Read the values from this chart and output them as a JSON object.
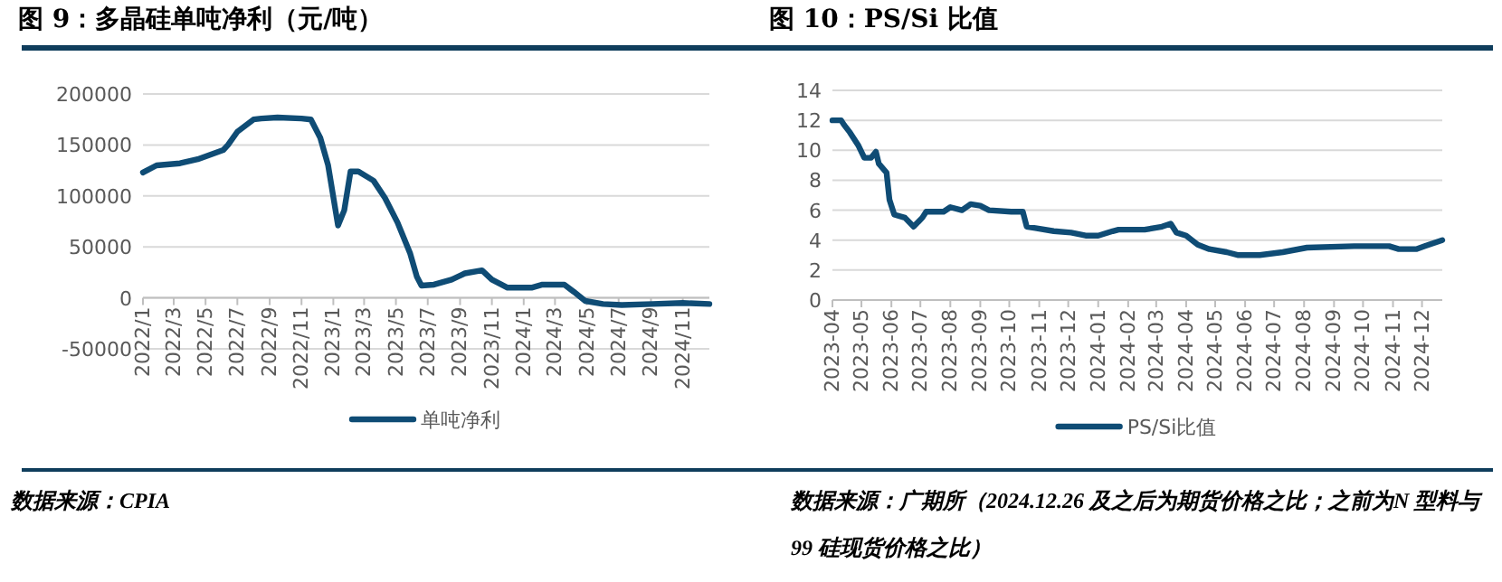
{
  "chart_data": [
    {
      "type": "line",
      "title": "图 9：多晶硅单吨净利（元/吨）",
      "grid": "y",
      "legend": "bottom",
      "x": [
        "2022-01-01",
        "2022-01-27",
        "2022-03-13",
        "2022-04-16",
        "2022-06-04",
        "2022-06-13",
        "2022-07-01",
        "2022-08-01",
        "2022-08-16",
        "2022-09-16",
        "2022-11-01",
        "2022-11-19",
        "2022-12-07",
        "2022-12-22",
        "2023-01-10",
        "2023-01-22",
        "2023-02-03",
        "2023-02-18",
        "2023-03-19",
        "2023-04-10",
        "2023-05-04",
        "2023-05-28",
        "2023-06-10",
        "2023-06-19",
        "2023-07-13",
        "2023-08-16",
        "2023-09-10",
        "2023-10-13",
        "2023-11-01",
        "2023-12-01",
        "2024-01-16",
        "2024-02-06",
        "2024-03-19",
        "2024-04-06",
        "2024-04-28",
        "2024-06-01",
        "2024-07-07",
        "2024-09-04",
        "2024-11-01",
        "2024-12-22"
      ],
      "series": [
        {
          "name": "单吨净利",
          "color": "#0f4c75",
          "values": [
            123000,
            130000,
            132000,
            136000,
            145000,
            150000,
            163000,
            175000,
            176000,
            177000,
            176000,
            175000,
            157000,
            130000,
            71000,
            86000,
            124000,
            124000,
            115000,
            98000,
            74000,
            44000,
            21000,
            12000,
            13000,
            18000,
            24000,
            27000,
            18000,
            10000,
            10000,
            13000,
            13000,
            6000,
            -3000,
            -6000,
            -7000,
            -6000,
            -5000,
            -6000
          ]
        }
      ],
      "xlim": [
        "2022-01-01",
        "2024-12-22"
      ],
      "xticks": [
        {
          "value": "2022-01",
          "label": "2022/1"
        },
        {
          "value": "2022-03",
          "label": "2022/3"
        },
        {
          "value": "2022-05",
          "label": "2022/5"
        },
        {
          "value": "2022-07",
          "label": "2022/7"
        },
        {
          "value": "2022-09",
          "label": "2022/9"
        },
        {
          "value": "2022-11",
          "label": "2022/11"
        },
        {
          "value": "2023-01",
          "label": "2023/1"
        },
        {
          "value": "2023-03",
          "label": "2023/3"
        },
        {
          "value": "2023-05",
          "label": "2023/5"
        },
        {
          "value": "2023-07",
          "label": "2023/7"
        },
        {
          "value": "2023-09",
          "label": "2023/9"
        },
        {
          "value": "2023-11",
          "label": "2023/11"
        },
        {
          "value": "2024-01",
          "label": "2024/1"
        },
        {
          "value": "2024-03",
          "label": "2024/3"
        },
        {
          "value": "2024-05",
          "label": "2024/5"
        },
        {
          "value": "2024-07",
          "label": "2024/7"
        },
        {
          "value": "2024-09",
          "label": "2024/9"
        },
        {
          "value": "2024-11",
          "label": "2024/11"
        }
      ],
      "ylim": [
        -50000,
        200000
      ],
      "yticks": [
        -50000,
        0,
        50000,
        100000,
        150000,
        200000
      ],
      "annotations": [
        "数据来源：CPIA"
      ]
    },
    {
      "type": "line",
      "title": "图 10：PS/Si 比值",
      "grid": "y",
      "legend": "bottom",
      "x": [
        "2023-04-01",
        "2023-04-10",
        "2023-04-13",
        "2023-04-19",
        "2023-04-28",
        "2023-05-04",
        "2023-05-11",
        "2023-05-16",
        "2023-05-19",
        "2023-05-27",
        "2023-05-30",
        "2023-06-04",
        "2023-06-15",
        "2023-06-24",
        "2023-07-03",
        "2023-07-07",
        "2023-07-25",
        "2023-08-01",
        "2023-08-13",
        "2023-08-22",
        "2023-09-01",
        "2023-09-10",
        "2023-10-03",
        "2023-10-15",
        "2023-10-19",
        "2023-10-28",
        "2023-11-16",
        "2023-12-04",
        "2023-12-19",
        "2024-01-01",
        "2024-01-16",
        "2024-01-22",
        "2024-02-18",
        "2024-03-07",
        "2024-03-16",
        "2024-03-22",
        "2024-04-01",
        "2024-04-13",
        "2024-04-25",
        "2024-05-13",
        "2024-05-25",
        "2024-06-16",
        "2024-07-10",
        "2024-08-04",
        "2024-09-22",
        "2024-10-28",
        "2024-11-07",
        "2024-11-25",
        "2024-12-04",
        "2024-12-13",
        "2024-12-22"
      ],
      "series": [
        {
          "name": "PS/Si比值",
          "color": "#0f4c75",
          "values": [
            12.0,
            12.0,
            11.7,
            11.2,
            10.3,
            9.5,
            9.5,
            9.9,
            9.1,
            8.5,
            6.7,
            5.7,
            5.5,
            4.9,
            5.5,
            5.9,
            5.9,
            6.2,
            6.0,
            6.4,
            6.3,
            6.0,
            5.9,
            5.9,
            4.9,
            4.8,
            4.6,
            4.5,
            4.3,
            4.3,
            4.6,
            4.7,
            4.7,
            4.9,
            5.1,
            4.5,
            4.3,
            3.7,
            3.4,
            3.2,
            3.0,
            3.0,
            3.2,
            3.5,
            3.6,
            3.6,
            3.4,
            3.4,
            3.6,
            3.8,
            4.0
          ]
        }
      ],
      "xlim": [
        "2023-04-01",
        "2024-12-22"
      ],
      "xticks": [
        {
          "value": "2023-04",
          "label": "2023-04"
        },
        {
          "value": "2023-05",
          "label": "2023-05"
        },
        {
          "value": "2023-06",
          "label": "2023-06"
        },
        {
          "value": "2023-07",
          "label": "2023-07"
        },
        {
          "value": "2023-08",
          "label": "2023-08"
        },
        {
          "value": "2023-09",
          "label": "2023-09"
        },
        {
          "value": "2023-10",
          "label": "2023-10"
        },
        {
          "value": "2023-11",
          "label": "2023-11"
        },
        {
          "value": "2023-12",
          "label": "2023-12"
        },
        {
          "value": "2024-01",
          "label": "2024-01"
        },
        {
          "value": "2024-02",
          "label": "2024-02"
        },
        {
          "value": "2024-03",
          "label": "2024-03"
        },
        {
          "value": "2024-04",
          "label": "2024-04"
        },
        {
          "value": "2024-05",
          "label": "2024-05"
        },
        {
          "value": "2024-06",
          "label": "2024-06"
        },
        {
          "value": "2024-07",
          "label": "2024-07"
        },
        {
          "value": "2024-08",
          "label": "2024-08"
        },
        {
          "value": "2024-09",
          "label": "2024-09"
        },
        {
          "value": "2024-10",
          "label": "2024-10"
        },
        {
          "value": "2024-11",
          "label": "2024-11"
        },
        {
          "value": "2024-12",
          "label": "2024-12"
        }
      ],
      "ylim": [
        0,
        14
      ],
      "yticks": [
        0,
        2,
        4,
        6,
        8,
        10,
        12,
        14
      ],
      "annotations": [
        "数据来源：广期所（2024.12.26 及之后为期货价格之比；之前为N 型料与99 硅现货价格之比）"
      ]
    }
  ]
}
